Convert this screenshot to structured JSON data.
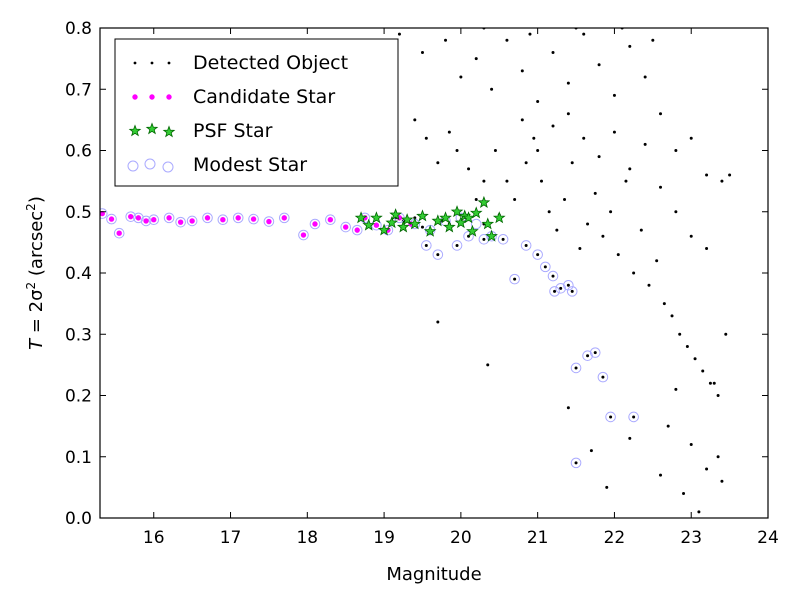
{
  "chart_data": {
    "type": "scatter",
    "xlabel": "Magnitude",
    "ylabel": {
      "prefix": "T",
      "equals": " = 2σ",
      "sup1": "2",
      "mid": " (arcsec",
      "sup2": "2",
      "suffix": ")"
    },
    "xlim": [
      15.3,
      24.0
    ],
    "ylim": [
      0.0,
      0.8
    ],
    "xticks": [
      "16",
      "17",
      "18",
      "19",
      "20",
      "21",
      "22",
      "23",
      "24"
    ],
    "yticks": [
      "0.0",
      "0.1",
      "0.2",
      "0.3",
      "0.4",
      "0.5",
      "0.6",
      "0.7",
      "0.8"
    ],
    "grid": false,
    "legend_position": "top-left",
    "legend": [
      {
        "label": "Detected Object",
        "marker": "dot",
        "color": "#000000"
      },
      {
        "label": "Candidate Star",
        "marker": "small-circle",
        "color": "#ff00ff"
      },
      {
        "label": "PSF Star",
        "marker": "star",
        "color": "#00aa00"
      },
      {
        "label": "Modest Star",
        "marker": "open-circle",
        "color": "#aaaaff"
      }
    ],
    "series": [
      {
        "name": "Detected Object",
        "color": "#000000",
        "points": [
          [
            15.33,
            0.497
          ],
          [
            15.45,
            0.488
          ],
          [
            15.55,
            0.465
          ],
          [
            15.7,
            0.492
          ],
          [
            15.8,
            0.49
          ],
          [
            15.9,
            0.485
          ],
          [
            16.0,
            0.487
          ],
          [
            16.2,
            0.49
          ],
          [
            16.35,
            0.483
          ],
          [
            16.5,
            0.485
          ],
          [
            16.7,
            0.49
          ],
          [
            16.9,
            0.487
          ],
          [
            17.1,
            0.49
          ],
          [
            17.3,
            0.488
          ],
          [
            17.5,
            0.484
          ],
          [
            17.7,
            0.49
          ],
          [
            17.95,
            0.462
          ],
          [
            18.1,
            0.48
          ],
          [
            18.3,
            0.487
          ],
          [
            18.5,
            0.475
          ],
          [
            18.65,
            0.47
          ],
          [
            18.75,
            0.49
          ],
          [
            18.9,
            0.478
          ],
          [
            19.05,
            0.47
          ],
          [
            19.15,
            0.49
          ],
          [
            19.25,
            0.485
          ],
          [
            19.4,
            0.49
          ],
          [
            19.5,
            0.475
          ],
          [
            19.6,
            0.465
          ],
          [
            19.75,
            0.485
          ],
          [
            19.85,
            0.48
          ],
          [
            19.95,
            0.5
          ],
          [
            20.05,
            0.493
          ],
          [
            20.15,
            0.468
          ],
          [
            20.3,
            0.48
          ],
          [
            20.4,
            0.46
          ],
          [
            20.5,
            0.495
          ],
          [
            19.55,
            0.445
          ],
          [
            19.7,
            0.43
          ],
          [
            19.95,
            0.445
          ],
          [
            20.1,
            0.46
          ],
          [
            20.3,
            0.455
          ],
          [
            20.55,
            0.455
          ],
          [
            20.7,
            0.39
          ],
          [
            20.85,
            0.445
          ],
          [
            21.0,
            0.43
          ],
          [
            21.1,
            0.41
          ],
          [
            21.2,
            0.395
          ],
          [
            21.22,
            0.37
          ],
          [
            21.3,
            0.375
          ],
          [
            21.4,
            0.38
          ],
          [
            21.45,
            0.37
          ],
          [
            21.5,
            0.245
          ],
          [
            21.65,
            0.265
          ],
          [
            21.75,
            0.27
          ],
          [
            21.85,
            0.23
          ],
          [
            21.95,
            0.165
          ],
          [
            22.25,
            0.165
          ],
          [
            21.5,
            0.09
          ],
          [
            19.7,
            0.32
          ],
          [
            20.35,
            0.25
          ],
          [
            21.4,
            0.18
          ],
          [
            21.7,
            0.11
          ],
          [
            21.9,
            0.05
          ],
          [
            22.2,
            0.13
          ],
          [
            22.6,
            0.07
          ],
          [
            22.9,
            0.04
          ],
          [
            23.1,
            0.01
          ],
          [
            23.2,
            0.08
          ],
          [
            23.35,
            0.1
          ],
          [
            23.4,
            0.06
          ],
          [
            22.7,
            0.15
          ],
          [
            23.0,
            0.12
          ],
          [
            22.8,
            0.21
          ],
          [
            23.3,
            0.22
          ],
          [
            19.4,
            0.65
          ],
          [
            19.55,
            0.62
          ],
          [
            19.7,
            0.58
          ],
          [
            19.85,
            0.63
          ],
          [
            19.95,
            0.6
          ],
          [
            20.1,
            0.57
          ],
          [
            20.2,
            0.52
          ],
          [
            20.3,
            0.55
          ],
          [
            20.45,
            0.6
          ],
          [
            20.6,
            0.55
          ],
          [
            20.7,
            0.52
          ],
          [
            20.85,
            0.58
          ],
          [
            20.95,
            0.62
          ],
          [
            21.05,
            0.55
          ],
          [
            21.15,
            0.5
          ],
          [
            21.25,
            0.47
          ],
          [
            21.35,
            0.52
          ],
          [
            21.45,
            0.58
          ],
          [
            21.55,
            0.44
          ],
          [
            21.65,
            0.48
          ],
          [
            21.75,
            0.53
          ],
          [
            21.85,
            0.46
          ],
          [
            21.95,
            0.5
          ],
          [
            22.05,
            0.43
          ],
          [
            22.15,
            0.55
          ],
          [
            22.25,
            0.4
          ],
          [
            22.35,
            0.47
          ],
          [
            22.45,
            0.38
          ],
          [
            22.55,
            0.42
          ],
          [
            22.65,
            0.35
          ],
          [
            22.75,
            0.33
          ],
          [
            22.85,
            0.3
          ],
          [
            22.95,
            0.28
          ],
          [
            23.05,
            0.26
          ],
          [
            23.15,
            0.24
          ],
          [
            23.25,
            0.22
          ],
          [
            23.35,
            0.2
          ],
          [
            23.45,
            0.3
          ],
          [
            20.0,
            0.72
          ],
          [
            20.2,
            0.75
          ],
          [
            20.4,
            0.7
          ],
          [
            20.6,
            0.78
          ],
          [
            20.8,
            0.73
          ],
          [
            21.0,
            0.68
          ],
          [
            21.2,
            0.76
          ],
          [
            21.4,
            0.71
          ],
          [
            21.6,
            0.79
          ],
          [
            21.8,
            0.74
          ],
          [
            22.0,
            0.69
          ],
          [
            22.2,
            0.77
          ],
          [
            22.4,
            0.72
          ],
          [
            22.6,
            0.66
          ],
          [
            22.8,
            0.6
          ],
          [
            23.0,
            0.62
          ],
          [
            23.2,
            0.56
          ],
          [
            23.4,
            0.55
          ],
          [
            23.5,
            0.56
          ],
          [
            19.2,
            0.79
          ],
          [
            19.5,
            0.76
          ],
          [
            19.8,
            0.78
          ],
          [
            20.3,
            0.8
          ],
          [
            20.9,
            0.79
          ],
          [
            21.5,
            0.8
          ],
          [
            22.1,
            0.8
          ],
          [
            22.5,
            0.78
          ],
          [
            20.8,
            0.65
          ],
          [
            21.0,
            0.6
          ],
          [
            21.2,
            0.64
          ],
          [
            21.4,
            0.66
          ],
          [
            21.6,
            0.62
          ],
          [
            21.8,
            0.59
          ],
          [
            22.0,
            0.63
          ],
          [
            22.2,
            0.57
          ],
          [
            22.4,
            0.61
          ],
          [
            22.6,
            0.54
          ],
          [
            22.8,
            0.5
          ],
          [
            23.0,
            0.46
          ],
          [
            23.2,
            0.44
          ]
        ]
      },
      {
        "name": "Candidate Star",
        "color": "#ff00ff",
        "points": [
          [
            15.33,
            0.497
          ],
          [
            15.45,
            0.488
          ],
          [
            15.55,
            0.465
          ],
          [
            15.7,
            0.492
          ],
          [
            15.8,
            0.49
          ],
          [
            15.9,
            0.485
          ],
          [
            16.0,
            0.487
          ],
          [
            16.2,
            0.49
          ],
          [
            16.35,
            0.483
          ],
          [
            16.5,
            0.485
          ],
          [
            16.7,
            0.49
          ],
          [
            16.9,
            0.487
          ],
          [
            17.1,
            0.49
          ],
          [
            17.3,
            0.488
          ],
          [
            17.5,
            0.484
          ],
          [
            17.7,
            0.49
          ],
          [
            17.95,
            0.462
          ],
          [
            18.1,
            0.48
          ],
          [
            18.3,
            0.487
          ],
          [
            18.5,
            0.475
          ],
          [
            18.65,
            0.47
          ],
          [
            18.75,
            0.49
          ],
          [
            18.9,
            0.478
          ],
          [
            19.05,
            0.47
          ],
          [
            19.2,
            0.49
          ],
          [
            19.35,
            0.48
          ]
        ]
      },
      {
        "name": "PSF Star",
        "color": "#00aa00",
        "points": [
          [
            18.7,
            0.49
          ],
          [
            18.8,
            0.478
          ],
          [
            18.9,
            0.49
          ],
          [
            19.0,
            0.47
          ],
          [
            19.1,
            0.482
          ],
          [
            19.15,
            0.495
          ],
          [
            19.25,
            0.475
          ],
          [
            19.3,
            0.487
          ],
          [
            19.4,
            0.48
          ],
          [
            19.5,
            0.493
          ],
          [
            19.6,
            0.468
          ],
          [
            19.7,
            0.485
          ],
          [
            19.8,
            0.49
          ],
          [
            19.85,
            0.475
          ],
          [
            19.95,
            0.5
          ],
          [
            20.0,
            0.482
          ],
          [
            20.05,
            0.493
          ],
          [
            20.1,
            0.49
          ],
          [
            20.15,
            0.468
          ],
          [
            20.2,
            0.498
          ],
          [
            20.3,
            0.515
          ],
          [
            20.35,
            0.48
          ],
          [
            20.4,
            0.46
          ],
          [
            20.5,
            0.49
          ]
        ]
      },
      {
        "name": "Modest Star",
        "color": "#aaaaff",
        "points": [
          [
            15.33,
            0.497
          ],
          [
            15.45,
            0.488
          ],
          [
            15.55,
            0.465
          ],
          [
            15.7,
            0.492
          ],
          [
            15.8,
            0.49
          ],
          [
            15.9,
            0.485
          ],
          [
            16.0,
            0.487
          ],
          [
            16.2,
            0.49
          ],
          [
            16.35,
            0.483
          ],
          [
            16.5,
            0.485
          ],
          [
            16.7,
            0.49
          ],
          [
            16.9,
            0.487
          ],
          [
            17.1,
            0.49
          ],
          [
            17.3,
            0.488
          ],
          [
            17.5,
            0.484
          ],
          [
            17.7,
            0.49
          ],
          [
            17.95,
            0.462
          ],
          [
            18.1,
            0.48
          ],
          [
            18.3,
            0.487
          ],
          [
            18.5,
            0.475
          ],
          [
            18.65,
            0.47
          ],
          [
            18.75,
            0.49
          ],
          [
            18.9,
            0.478
          ],
          [
            19.05,
            0.47
          ],
          [
            19.2,
            0.49
          ],
          [
            19.4,
            0.48
          ],
          [
            19.6,
            0.47
          ],
          [
            19.8,
            0.485
          ],
          [
            20.0,
            0.49
          ],
          [
            20.2,
            0.48
          ],
          [
            20.4,
            0.46
          ],
          [
            19.55,
            0.445
          ],
          [
            19.7,
            0.43
          ],
          [
            19.95,
            0.445
          ],
          [
            20.1,
            0.46
          ],
          [
            20.3,
            0.455
          ],
          [
            20.55,
            0.455
          ],
          [
            20.7,
            0.39
          ],
          [
            20.85,
            0.445
          ],
          [
            21.0,
            0.43
          ],
          [
            21.1,
            0.41
          ],
          [
            21.2,
            0.395
          ],
          [
            21.22,
            0.37
          ],
          [
            21.3,
            0.375
          ],
          [
            21.4,
            0.38
          ],
          [
            21.45,
            0.37
          ],
          [
            21.5,
            0.245
          ],
          [
            21.65,
            0.265
          ],
          [
            21.75,
            0.27
          ],
          [
            21.85,
            0.23
          ],
          [
            21.95,
            0.165
          ],
          [
            22.25,
            0.165
          ],
          [
            21.5,
            0.09
          ]
        ]
      }
    ]
  }
}
